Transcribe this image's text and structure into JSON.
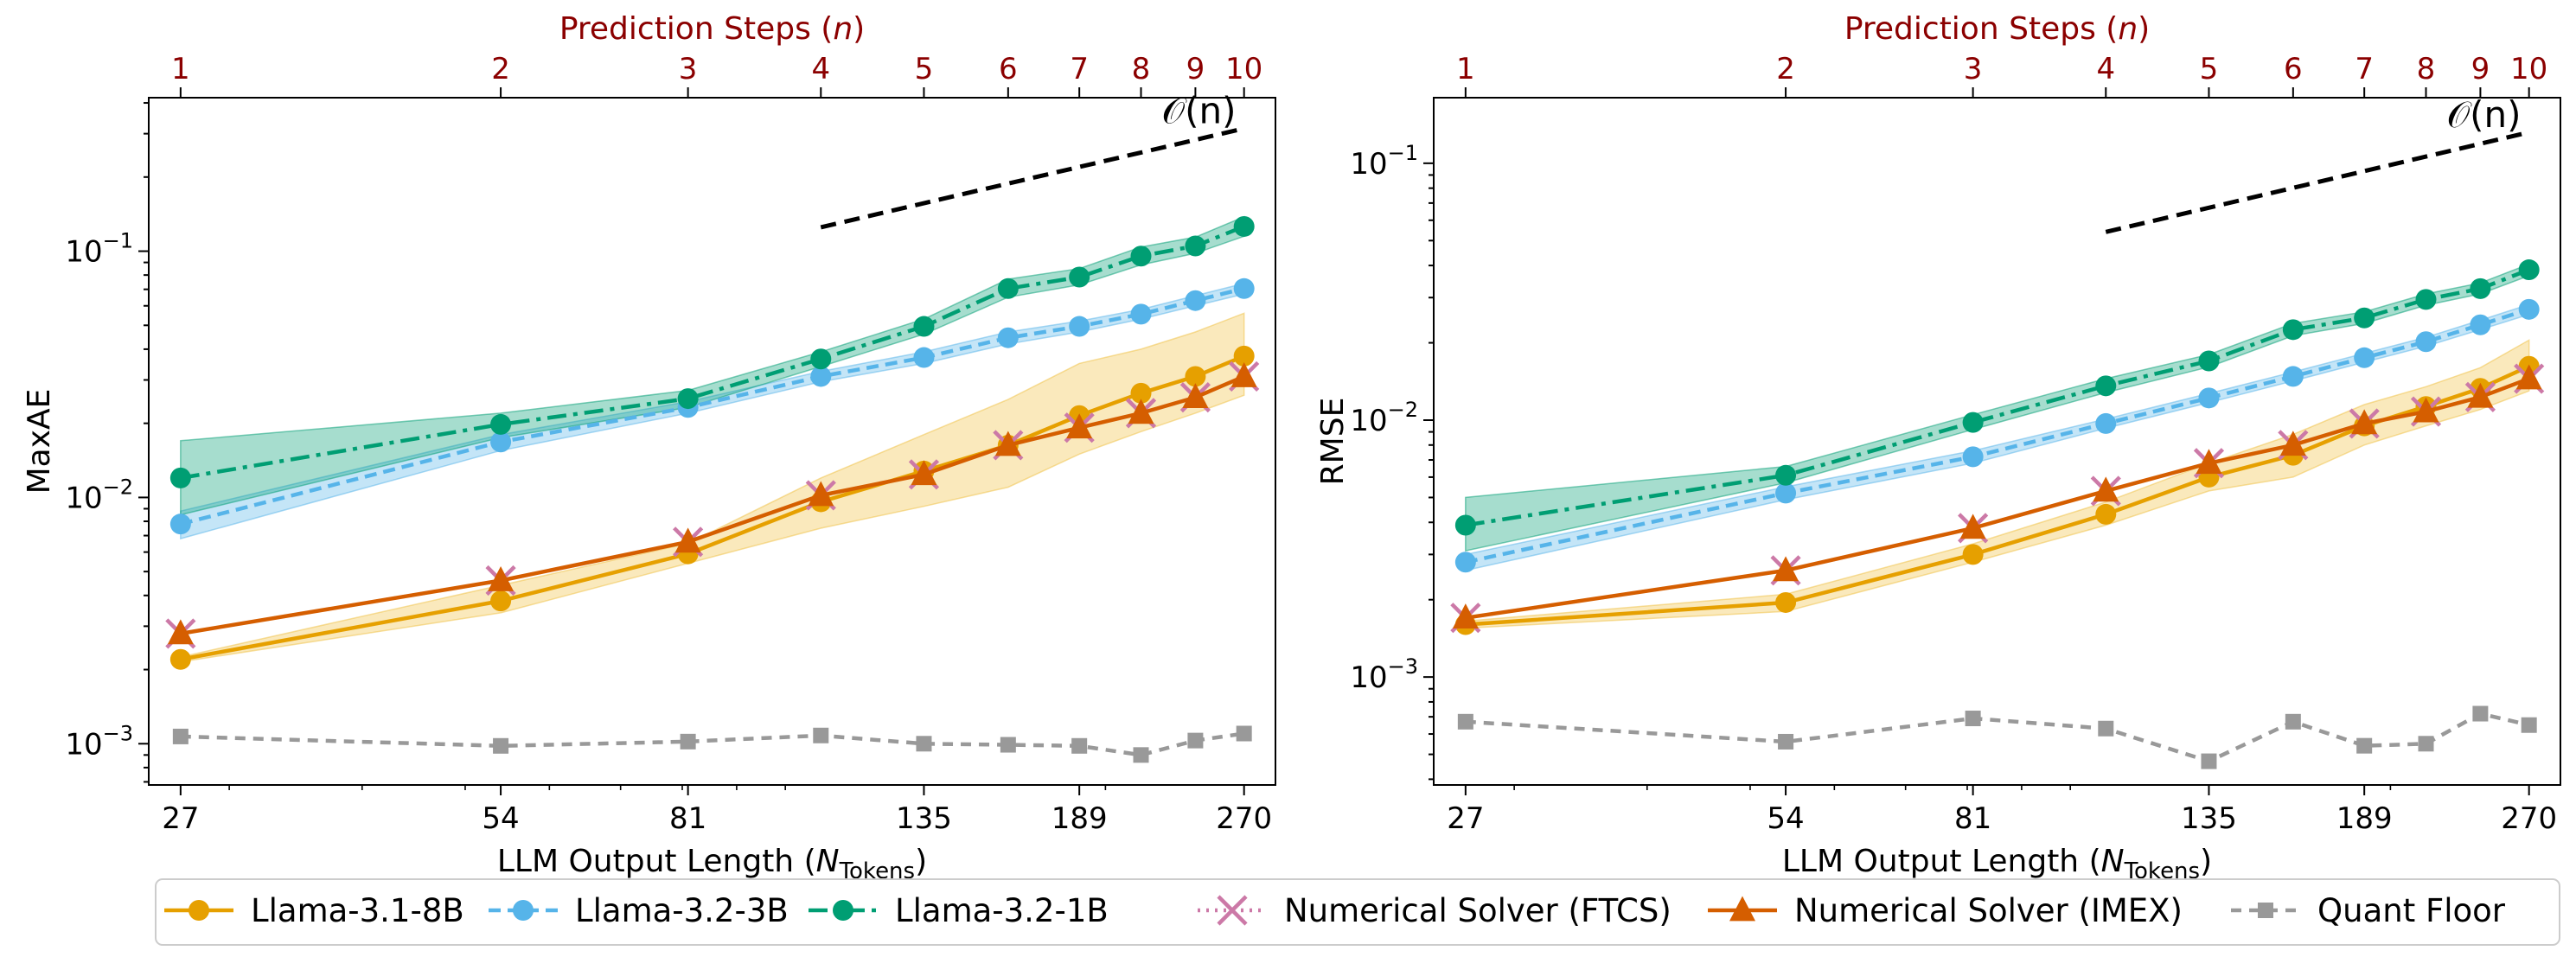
{
  "chart_data": [
    {
      "type": "line",
      "metric": "MaxAE",
      "ylabel": "MaxAE",
      "xlabel_main": "LLM Output Length (",
      "xlabel_math": "N",
      "xlabel_sub": "Tokens",
      "xlabel_end": ")",
      "top_xlabel_main": "Prediction Steps (",
      "top_xlabel_math": "n",
      "top_xlabel_end": ")",
      "x_scale": "log",
      "y_scale": "log",
      "xlim": [
        25.2,
        289
      ],
      "ylim": [
        0.00068,
        0.42
      ],
      "x": [
        27,
        54,
        81,
        108,
        135,
        162,
        189,
        216,
        243,
        270
      ],
      "x_tick_values": [
        27,
        54,
        81,
        135,
        189,
        270
      ],
      "x_tick_labels": [
        "27",
        "54",
        "81",
        "135",
        "189",
        "270"
      ],
      "top_tick_labels": [
        "1",
        "2",
        "3",
        "4",
        "5",
        "6",
        "7",
        "8",
        "9",
        "10"
      ],
      "y_tick_values": [
        0.001,
        0.01,
        0.1
      ],
      "y_tick_labels": [
        {
          "base": "10",
          "exp": "−3"
        },
        {
          "base": "10",
          "exp": "−2"
        },
        {
          "base": "10",
          "exp": "−1"
        }
      ],
      "reference": {
        "label": "𝒪(n)",
        "x": [
          108,
          270
        ],
        "y": [
          0.125,
          0.315
        ]
      },
      "series": [
        {
          "name": "Llama-3.1-8B",
          "values": [
            0.0022,
            0.0038,
            0.0059,
            0.0096,
            0.0128,
            0.0163,
            0.0215,
            0.0265,
            0.031,
            0.0375
          ],
          "band_low": [
            0.00215,
            0.0034,
            0.0054,
            0.0075,
            0.0092,
            0.011,
            0.015,
            0.0185,
            0.022,
            0.026
          ],
          "band_high": [
            0.00225,
            0.0044,
            0.0065,
            0.012,
            0.018,
            0.025,
            0.035,
            0.04,
            0.047,
            0.056
          ]
        },
        {
          "name": "Llama-3.2-3B",
          "values": [
            0.0078,
            0.0168,
            0.0232,
            0.031,
            0.037,
            0.0445,
            0.0495,
            0.0555,
            0.063,
            0.0705
          ],
          "band_low": [
            0.0068,
            0.0155,
            0.022,
            0.0295,
            0.035,
            0.042,
            0.047,
            0.053,
            0.06,
            0.067
          ],
          "band_high": [
            0.0088,
            0.018,
            0.0245,
            0.0325,
            0.039,
            0.047,
            0.052,
            0.058,
            0.066,
            0.074
          ]
        },
        {
          "name": "Llama-3.2-1B",
          "values": [
            0.012,
            0.0198,
            0.0252,
            0.0365,
            0.0495,
            0.0705,
            0.0785,
            0.0955,
            0.105,
            0.126
          ],
          "band_low": [
            0.0085,
            0.0175,
            0.0232,
            0.034,
            0.046,
            0.065,
            0.073,
            0.088,
            0.098,
            0.115
          ],
          "band_high": [
            0.017,
            0.022,
            0.0272,
            0.039,
            0.053,
            0.077,
            0.085,
            0.104,
            0.114,
            0.138
          ]
        },
        {
          "name": "Numerical Solver (FTCS)",
          "values": [
            0.0028,
            0.0046,
            0.0066,
            0.0102,
            0.0124,
            0.0163,
            0.0192,
            0.022,
            0.0255,
            0.031
          ]
        },
        {
          "name": "Numerical Solver (IMEX)",
          "values": [
            0.0028,
            0.0046,
            0.0066,
            0.0102,
            0.0124,
            0.0163,
            0.0192,
            0.022,
            0.0255,
            0.031
          ]
        },
        {
          "name": "Quant Floor",
          "values": [
            0.00107,
            0.00098,
            0.00102,
            0.00108,
            0.001,
            0.00099,
            0.00098,
            0.0009,
            0.00103,
            0.0011
          ]
        }
      ]
    },
    {
      "type": "line",
      "metric": "RMSE",
      "ylabel": "RMSE",
      "xlabel_main": "LLM Output Length (",
      "xlabel_math": "N",
      "xlabel_sub": "Tokens",
      "xlabel_end": ")",
      "top_xlabel_main": "Prediction Steps (",
      "top_xlabel_math": "n",
      "top_xlabel_end": ")",
      "x_scale": "log",
      "y_scale": "log",
      "xlim": [
        25.2,
        289
      ],
      "ylim": [
        0.00038,
        0.18
      ],
      "x": [
        27,
        54,
        81,
        108,
        135,
        162,
        189,
        216,
        243,
        270
      ],
      "x_tick_values": [
        27,
        54,
        81,
        135,
        189,
        270
      ],
      "x_tick_labels": [
        "27",
        "54",
        "81",
        "135",
        "189",
        "270"
      ],
      "top_tick_labels": [
        "1",
        "2",
        "3",
        "4",
        "5",
        "6",
        "7",
        "8",
        "9",
        "10"
      ],
      "y_tick_values": [
        0.001,
        0.01,
        0.1
      ],
      "y_tick_labels": [
        {
          "base": "10",
          "exp": "−3"
        },
        {
          "base": "10",
          "exp": "−2"
        },
        {
          "base": "10",
          "exp": "−1"
        }
      ],
      "reference": {
        "label": "𝒪(n)",
        "x": [
          108,
          270
        ],
        "y": [
          0.054,
          0.132
        ]
      },
      "series": [
        {
          "name": "Llama-3.1-8B",
          "values": [
            0.0016,
            0.00195,
            0.003,
            0.0043,
            0.006,
            0.0073,
            0.0095,
            0.0113,
            0.0133,
            0.0162
          ],
          "band_low": [
            0.00155,
            0.0018,
            0.0028,
            0.0039,
            0.0053,
            0.006,
            0.008,
            0.0095,
            0.011,
            0.013
          ],
          "band_high": [
            0.00165,
            0.0021,
            0.0033,
            0.0048,
            0.0068,
            0.0088,
            0.0115,
            0.0135,
            0.016,
            0.0205
          ]
        },
        {
          "name": "Llama-3.2-3B",
          "values": [
            0.0028,
            0.0052,
            0.0072,
            0.0097,
            0.0122,
            0.0148,
            0.0175,
            0.0202,
            0.0235,
            0.027
          ],
          "band_low": [
            0.0026,
            0.0049,
            0.0068,
            0.0093,
            0.0117,
            0.0142,
            0.0168,
            0.0194,
            0.0225,
            0.0258
          ],
          "band_high": [
            0.003,
            0.0055,
            0.0076,
            0.0101,
            0.0127,
            0.0154,
            0.0182,
            0.021,
            0.0245,
            0.0282
          ]
        },
        {
          "name": "Llama-3.2-1B",
          "values": [
            0.0039,
            0.0061,
            0.0098,
            0.0136,
            0.017,
            0.0225,
            0.025,
            0.0295,
            0.0325,
            0.0385
          ],
          "band_low": [
            0.0031,
            0.0057,
            0.0092,
            0.0128,
            0.0161,
            0.0213,
            0.0238,
            0.028,
            0.031,
            0.0365
          ],
          "band_high": [
            0.005,
            0.0066,
            0.0105,
            0.0145,
            0.018,
            0.0238,
            0.0264,
            0.031,
            0.0342,
            0.0405
          ]
        },
        {
          "name": "Numerical Solver (FTCS)",
          "values": [
            0.0017,
            0.0026,
            0.0038,
            0.0053,
            0.0068,
            0.008,
            0.0097,
            0.0108,
            0.0123,
            0.0145
          ]
        },
        {
          "name": "Numerical Solver (IMEX)",
          "values": [
            0.0017,
            0.0026,
            0.0038,
            0.0053,
            0.0068,
            0.008,
            0.0097,
            0.0108,
            0.0123,
            0.0145
          ]
        },
        {
          "name": "Quant Floor",
          "values": [
            0.00067,
            0.00056,
            0.00069,
            0.00063,
            0.00047,
            0.00067,
            0.00054,
            0.00055,
            0.00072,
            0.00065
          ]
        }
      ]
    }
  ],
  "legend": {
    "entries": [
      {
        "label": "Llama-3.1-8B"
      },
      {
        "label": "Llama-3.2-3B"
      },
      {
        "label": "Llama-3.2-1B"
      },
      {
        "label": "Numerical Solver (FTCS)"
      },
      {
        "label": "Numerical Solver (IMEX)"
      },
      {
        "label": "Quant Floor"
      }
    ]
  },
  "colors": {
    "llama8b": "#e6a000",
    "llama8b_band": "#f0c040",
    "llama3b": "#56b4e9",
    "llama1b": "#009e73",
    "ftcs": "#cc79a7",
    "imex": "#d55e00",
    "floor": "#999999",
    "top_axis": "#8b0000"
  }
}
